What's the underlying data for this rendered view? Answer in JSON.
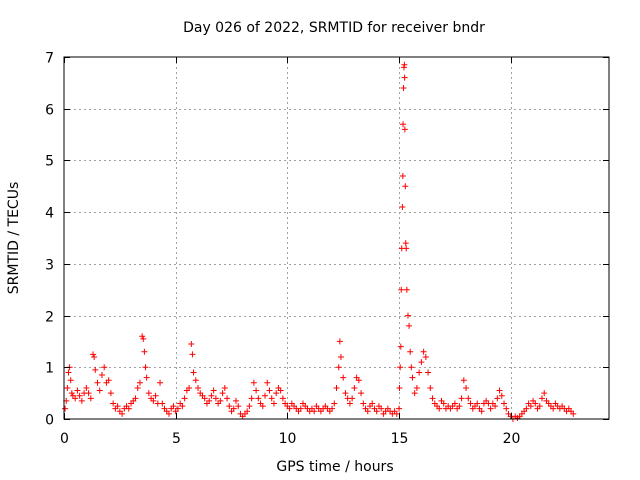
{
  "chart_data": {
    "type": "scatter",
    "title": "Day 026 of 2022, SRMTID for receiver bndr",
    "xlabel": "GPS time / hours",
    "ylabel": "SRMTID / TECUs",
    "xlim": [
      0,
      24.4
    ],
    "ylim": [
      0,
      7
    ],
    "xticks": [
      0,
      5,
      10,
      15,
      20
    ],
    "yticks": [
      0,
      1,
      2,
      3,
      4,
      5,
      6,
      7
    ],
    "grid": true,
    "marker": "+",
    "series": [
      {
        "name": "SRMTID",
        "color": "#ff0000",
        "points": [
          [
            0.05,
            0.2
          ],
          [
            0.1,
            0.35
          ],
          [
            0.15,
            0.6
          ],
          [
            0.2,
            0.9
          ],
          [
            0.25,
            1.0
          ],
          [
            0.3,
            0.75
          ],
          [
            0.35,
            0.5
          ],
          [
            0.4,
            0.45
          ],
          [
            0.5,
            0.4
          ],
          [
            0.6,
            0.55
          ],
          [
            0.7,
            0.45
          ],
          [
            0.8,
            0.35
          ],
          [
            0.9,
            0.5
          ],
          [
            1.0,
            0.6
          ],
          [
            1.1,
            0.5
          ],
          [
            1.2,
            0.4
          ],
          [
            1.3,
            1.25
          ],
          [
            1.35,
            1.2
          ],
          [
            1.4,
            0.95
          ],
          [
            1.5,
            0.7
          ],
          [
            1.6,
            0.55
          ],
          [
            1.7,
            0.85
          ],
          [
            1.8,
            1.0
          ],
          [
            1.9,
            0.7
          ],
          [
            2.0,
            0.75
          ],
          [
            2.1,
            0.5
          ],
          [
            2.2,
            0.3
          ],
          [
            2.3,
            0.2
          ],
          [
            2.4,
            0.25
          ],
          [
            2.5,
            0.15
          ],
          [
            2.6,
            0.1
          ],
          [
            2.7,
            0.2
          ],
          [
            2.8,
            0.25
          ],
          [
            2.9,
            0.2
          ],
          [
            3.0,
            0.3
          ],
          [
            3.1,
            0.35
          ],
          [
            3.2,
            0.4
          ],
          [
            3.3,
            0.6
          ],
          [
            3.4,
            0.7
          ],
          [
            3.5,
            1.6
          ],
          [
            3.55,
            1.55
          ],
          [
            3.6,
            1.3
          ],
          [
            3.65,
            1.0
          ],
          [
            3.7,
            0.8
          ],
          [
            3.8,
            0.5
          ],
          [
            3.9,
            0.4
          ],
          [
            4.0,
            0.35
          ],
          [
            4.1,
            0.45
          ],
          [
            4.2,
            0.3
          ],
          [
            4.3,
            0.7
          ],
          [
            4.4,
            0.3
          ],
          [
            4.5,
            0.2
          ],
          [
            4.6,
            0.15
          ],
          [
            4.7,
            0.1
          ],
          [
            4.8,
            0.2
          ],
          [
            4.9,
            0.25
          ],
          [
            5.0,
            0.15
          ],
          [
            5.1,
            0.2
          ],
          [
            5.2,
            0.3
          ],
          [
            5.3,
            0.25
          ],
          [
            5.4,
            0.4
          ],
          [
            5.5,
            0.55
          ],
          [
            5.6,
            0.6
          ],
          [
            5.7,
            1.45
          ],
          [
            5.75,
            1.25
          ],
          [
            5.8,
            0.9
          ],
          [
            5.9,
            0.75
          ],
          [
            6.0,
            0.6
          ],
          [
            6.1,
            0.5
          ],
          [
            6.2,
            0.45
          ],
          [
            6.3,
            0.4
          ],
          [
            6.4,
            0.3
          ],
          [
            6.5,
            0.35
          ],
          [
            6.6,
            0.45
          ],
          [
            6.7,
            0.55
          ],
          [
            6.8,
            0.4
          ],
          [
            6.9,
            0.3
          ],
          [
            7.0,
            0.35
          ],
          [
            7.1,
            0.5
          ],
          [
            7.2,
            0.6
          ],
          [
            7.3,
            0.4
          ],
          [
            7.4,
            0.25
          ],
          [
            7.5,
            0.15
          ],
          [
            7.6,
            0.2
          ],
          [
            7.7,
            0.35
          ],
          [
            7.8,
            0.25
          ],
          [
            7.9,
            0.1
          ],
          [
            8.0,
            0.05
          ],
          [
            8.1,
            0.1
          ],
          [
            8.2,
            0.15
          ],
          [
            8.3,
            0.25
          ],
          [
            8.4,
            0.4
          ],
          [
            8.5,
            0.7
          ],
          [
            8.6,
            0.55
          ],
          [
            8.7,
            0.4
          ],
          [
            8.8,
            0.3
          ],
          [
            8.9,
            0.25
          ],
          [
            9.0,
            0.45
          ],
          [
            9.1,
            0.7
          ],
          [
            9.2,
            0.55
          ],
          [
            9.3,
            0.4
          ],
          [
            9.4,
            0.3
          ],
          [
            9.5,
            0.5
          ],
          [
            9.6,
            0.6
          ],
          [
            9.7,
            0.55
          ],
          [
            9.8,
            0.4
          ],
          [
            9.9,
            0.3
          ],
          [
            10.0,
            0.25
          ],
          [
            10.1,
            0.2
          ],
          [
            10.2,
            0.3
          ],
          [
            10.3,
            0.25
          ],
          [
            10.4,
            0.2
          ],
          [
            10.5,
            0.15
          ],
          [
            10.6,
            0.2
          ],
          [
            10.7,
            0.3
          ],
          [
            10.8,
            0.25
          ],
          [
            10.9,
            0.2
          ],
          [
            11.0,
            0.15
          ],
          [
            11.1,
            0.2
          ],
          [
            11.2,
            0.15
          ],
          [
            11.3,
            0.25
          ],
          [
            11.4,
            0.2
          ],
          [
            11.5,
            0.15
          ],
          [
            11.6,
            0.2
          ],
          [
            11.7,
            0.25
          ],
          [
            11.8,
            0.2
          ],
          [
            11.9,
            0.15
          ],
          [
            12.0,
            0.2
          ],
          [
            12.1,
            0.3
          ],
          [
            12.2,
            0.6
          ],
          [
            12.3,
            1.0
          ],
          [
            12.35,
            1.5
          ],
          [
            12.4,
            1.2
          ],
          [
            12.5,
            0.8
          ],
          [
            12.6,
            0.5
          ],
          [
            12.7,
            0.4
          ],
          [
            12.8,
            0.3
          ],
          [
            12.9,
            0.4
          ],
          [
            13.0,
            0.6
          ],
          [
            13.1,
            0.8
          ],
          [
            13.2,
            0.75
          ],
          [
            13.3,
            0.5
          ],
          [
            13.4,
            0.3
          ],
          [
            13.5,
            0.2
          ],
          [
            13.6,
            0.15
          ],
          [
            13.7,
            0.25
          ],
          [
            13.8,
            0.3
          ],
          [
            13.9,
            0.2
          ],
          [
            14.0,
            0.15
          ],
          [
            14.1,
            0.25
          ],
          [
            14.2,
            0.2
          ],
          [
            14.3,
            0.1
          ],
          [
            14.4,
            0.15
          ],
          [
            14.5,
            0.2
          ],
          [
            14.6,
            0.15
          ],
          [
            14.7,
            0.1
          ],
          [
            14.8,
            0.15
          ],
          [
            14.9,
            0.1
          ],
          [
            15.0,
            0.2
          ],
          [
            15.02,
            0.6
          ],
          [
            15.05,
            1.0
          ],
          [
            15.08,
            1.4
          ],
          [
            15.1,
            2.5
          ],
          [
            15.12,
            3.3
          ],
          [
            15.15,
            4.1
          ],
          [
            15.17,
            4.7
          ],
          [
            15.18,
            5.7
          ],
          [
            15.2,
            6.4
          ],
          [
            15.22,
            6.8
          ],
          [
            15.24,
            6.85
          ],
          [
            15.25,
            6.6
          ],
          [
            15.26,
            5.6
          ],
          [
            15.28,
            4.5
          ],
          [
            15.3,
            3.4
          ],
          [
            15.32,
            3.3
          ],
          [
            15.35,
            2.5
          ],
          [
            15.4,
            2.0
          ],
          [
            15.45,
            1.8
          ],
          [
            15.5,
            1.3
          ],
          [
            15.55,
            1.0
          ],
          [
            15.6,
            0.8
          ],
          [
            15.7,
            0.5
          ],
          [
            15.8,
            0.6
          ],
          [
            15.9,
            0.9
          ],
          [
            16.0,
            1.1
          ],
          [
            16.1,
            1.3
          ],
          [
            16.2,
            1.2
          ],
          [
            16.3,
            0.9
          ],
          [
            16.4,
            0.6
          ],
          [
            16.5,
            0.4
          ],
          [
            16.6,
            0.3
          ],
          [
            16.7,
            0.25
          ],
          [
            16.8,
            0.2
          ],
          [
            16.9,
            0.35
          ],
          [
            17.0,
            0.3
          ],
          [
            17.1,
            0.2
          ],
          [
            17.2,
            0.25
          ],
          [
            17.3,
            0.2
          ],
          [
            17.4,
            0.25
          ],
          [
            17.5,
            0.3
          ],
          [
            17.6,
            0.2
          ],
          [
            17.7,
            0.25
          ],
          [
            17.8,
            0.4
          ],
          [
            17.9,
            0.75
          ],
          [
            18.0,
            0.6
          ],
          [
            18.1,
            0.4
          ],
          [
            18.2,
            0.3
          ],
          [
            18.3,
            0.2
          ],
          [
            18.4,
            0.25
          ],
          [
            18.5,
            0.3
          ],
          [
            18.6,
            0.2
          ],
          [
            18.7,
            0.15
          ],
          [
            18.8,
            0.3
          ],
          [
            18.9,
            0.35
          ],
          [
            19.0,
            0.3
          ],
          [
            19.1,
            0.2
          ],
          [
            19.2,
            0.3
          ],
          [
            19.3,
            0.25
          ],
          [
            19.4,
            0.4
          ],
          [
            19.5,
            0.55
          ],
          [
            19.6,
            0.45
          ],
          [
            19.7,
            0.3
          ],
          [
            19.8,
            0.2
          ],
          [
            19.9,
            0.1
          ],
          [
            20.0,
            0.05
          ],
          [
            20.1,
            0.0
          ],
          [
            20.2,
            0.05
          ],
          [
            20.3,
            0.02
          ],
          [
            20.4,
            0.05
          ],
          [
            20.5,
            0.1
          ],
          [
            20.6,
            0.15
          ],
          [
            20.7,
            0.2
          ],
          [
            20.8,
            0.3
          ],
          [
            20.9,
            0.25
          ],
          [
            21.0,
            0.35
          ],
          [
            21.1,
            0.3
          ],
          [
            21.2,
            0.2
          ],
          [
            21.3,
            0.25
          ],
          [
            21.4,
            0.4
          ],
          [
            21.5,
            0.5
          ],
          [
            21.6,
            0.35
          ],
          [
            21.7,
            0.3
          ],
          [
            21.8,
            0.25
          ],
          [
            21.9,
            0.2
          ],
          [
            22.0,
            0.3
          ],
          [
            22.1,
            0.25
          ],
          [
            22.2,
            0.2
          ],
          [
            22.3,
            0.25
          ],
          [
            22.4,
            0.2
          ],
          [
            22.5,
            0.15
          ],
          [
            22.6,
            0.2
          ],
          [
            22.7,
            0.15
          ],
          [
            22.8,
            0.1
          ]
        ]
      }
    ]
  }
}
